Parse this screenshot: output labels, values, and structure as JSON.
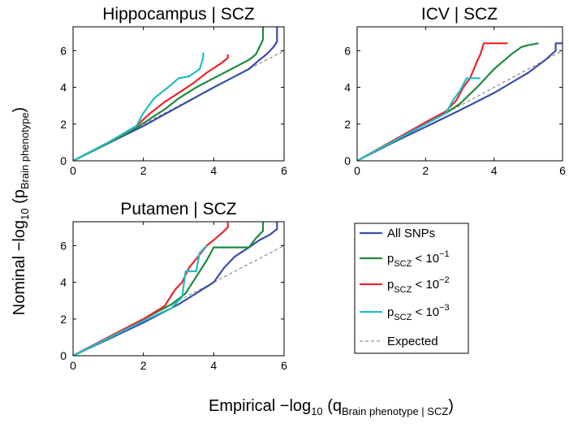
{
  "figure": {
    "ylabel_main": "Nominal −log",
    "ylabel_sub": "10",
    "ylabel_paren": " (p",
    "ylabel_subscript": "Brain phenotype",
    "ylabel_close": ")",
    "xlabel_main": "Empirical −log",
    "xlabel_sub": "10",
    "xlabel_paren": " (q",
    "xlabel_subscript": "Brain phenotype | SCZ",
    "xlabel_close": ")"
  },
  "legend": {
    "entries": [
      {
        "label": "All SNPs",
        "prefix": "",
        "sub": "",
        "exp": "",
        "color": "#3a4da8",
        "style": "solid"
      },
      {
        "label": "",
        "prefix": "p",
        "sub": "SCZ",
        "mid": " < 10",
        "exp": "−1",
        "color": "#1f8a3a",
        "style": "solid"
      },
      {
        "label": "",
        "prefix": "p",
        "sub": "SCZ",
        "mid": " < 10",
        "exp": "−2",
        "color": "#e8262b",
        "style": "solid"
      },
      {
        "label": "",
        "prefix": "p",
        "sub": "SCZ",
        "mid": " < 10",
        "exp": "−3",
        "color": "#23bcc4",
        "style": "solid"
      },
      {
        "label": "Expected",
        "prefix": "",
        "sub": "",
        "exp": "",
        "color": "#777777",
        "style": "dashed"
      }
    ]
  },
  "chart_data": [
    {
      "type": "line",
      "title": "Hippocampus | SCZ",
      "xlim": [
        0,
        6
      ],
      "ylim": [
        0,
        7.3
      ],
      "xticks": [
        0,
        2,
        4,
        6
      ],
      "yticks": [
        0,
        2,
        4,
        6
      ],
      "series": [
        {
          "name": "All SNPs",
          "x": [
            0,
            1,
            2,
            3,
            4,
            4.5,
            5,
            5.3,
            5.5,
            5.6,
            5.7,
            5.8,
            5.8
          ],
          "y": [
            0,
            0.95,
            1.9,
            2.95,
            4.0,
            4.5,
            5.0,
            5.5,
            5.8,
            6.0,
            6.2,
            6.5,
            7.3
          ]
        },
        {
          "name": "p_SCZ < 10^-1",
          "x": [
            0,
            1,
            1.8,
            2.2,
            2.6,
            3.0,
            3.5,
            4.0,
            4.5,
            5.0,
            5.2,
            5.3,
            5.4,
            5.4
          ],
          "y": [
            0,
            0.95,
            1.8,
            2.3,
            2.8,
            3.4,
            4.0,
            4.5,
            5.0,
            5.5,
            5.8,
            6.2,
            6.6,
            7.3
          ]
        },
        {
          "name": "p_SCZ < 10^-2",
          "x": [
            0,
            1,
            1.8,
            2.2,
            2.6,
            3.0,
            3.4,
            3.8,
            4.2,
            4.4,
            4.4
          ],
          "y": [
            0,
            1.0,
            1.9,
            2.6,
            3.2,
            3.7,
            4.2,
            4.8,
            5.3,
            5.6,
            5.8
          ]
        },
        {
          "name": "p_SCZ < 10^-3",
          "x": [
            0,
            1,
            1.8,
            2.0,
            2.3,
            2.7,
            3.0,
            3.3,
            3.6,
            3.7,
            3.7
          ],
          "y": [
            0,
            1.0,
            1.9,
            2.6,
            3.4,
            4.0,
            4.5,
            4.6,
            5.0,
            5.6,
            5.9
          ]
        },
        {
          "name": "Expected",
          "x": [
            0,
            6
          ],
          "y": [
            0,
            6
          ]
        }
      ]
    },
    {
      "type": "line",
      "title": "ICV | SCZ",
      "xlim": [
        0,
        6
      ],
      "ylim": [
        0,
        7.3
      ],
      "xticks": [
        0,
        2,
        4,
        6
      ],
      "yticks": [
        0,
        2,
        4,
        6
      ],
      "series": [
        {
          "name": "All SNPs",
          "x": [
            0,
            1,
            2,
            3,
            4,
            5,
            5.5,
            5.8,
            5.8,
            6.0
          ],
          "y": [
            0,
            0.95,
            1.85,
            2.75,
            3.7,
            4.8,
            5.5,
            6.0,
            6.4,
            6.4
          ]
        },
        {
          "name": "p_SCZ < 10^-1",
          "x": [
            0,
            1,
            2,
            2.6,
            3.0,
            3.5,
            4.0,
            4.5,
            4.8,
            5.0,
            5.3
          ],
          "y": [
            0,
            1.0,
            2.0,
            2.6,
            3.1,
            4.0,
            5.0,
            5.8,
            6.2,
            6.3,
            6.4
          ]
        },
        {
          "name": "p_SCZ < 10^-2",
          "x": [
            0,
            1,
            2,
            2.6,
            2.9,
            3.1,
            3.3,
            3.5,
            3.6,
            3.7,
            4.4
          ],
          "y": [
            0,
            1.05,
            2.1,
            2.7,
            3.3,
            4.0,
            4.5,
            5.4,
            5.8,
            6.4,
            6.4
          ]
        },
        {
          "name": "p_SCZ < 10^-3",
          "x": [
            0,
            1,
            2,
            2.6,
            2.8,
            3.0,
            3.2,
            3.6
          ],
          "y": [
            0,
            1.0,
            2.0,
            2.6,
            3.3,
            3.8,
            4.5,
            4.5
          ]
        },
        {
          "name": "Expected",
          "x": [
            0,
            6
          ],
          "y": [
            0,
            6
          ]
        }
      ]
    },
    {
      "type": "line",
      "title": "Putamen | SCZ",
      "xlim": [
        0,
        6
      ],
      "ylim": [
        0,
        7.3
      ],
      "xticks": [
        0,
        2,
        4,
        6
      ],
      "yticks": [
        0,
        2,
        4,
        6
      ],
      "series": [
        {
          "name": "All SNPs",
          "x": [
            0,
            1,
            2,
            3,
            3.5,
            4.0,
            4.3,
            4.6,
            5.0,
            5.3,
            5.6,
            5.8,
            5.8
          ],
          "y": [
            0,
            0.9,
            1.8,
            2.8,
            3.4,
            4.0,
            4.8,
            5.4,
            5.9,
            6.3,
            6.6,
            6.9,
            7.3
          ]
        },
        {
          "name": "p_SCZ < 10^-1",
          "x": [
            0,
            1,
            2,
            2.8,
            3.2,
            3.5,
            3.8,
            4.0,
            5.0,
            5.2,
            5.4,
            5.4
          ],
          "y": [
            0,
            1.0,
            2.0,
            2.8,
            3.4,
            4.3,
            5.2,
            5.9,
            5.9,
            6.4,
            6.8,
            7.3
          ]
        },
        {
          "name": "p_SCZ < 10^-2",
          "x": [
            0,
            1,
            2,
            2.6,
            2.9,
            3.1,
            3.3,
            3.6,
            3.8,
            4.0,
            4.3,
            4.4,
            4.4
          ],
          "y": [
            0,
            1.0,
            2.0,
            2.7,
            3.6,
            4.0,
            4.8,
            5.5,
            6.0,
            6.3,
            6.8,
            7.0,
            7.3
          ]
        },
        {
          "name": "p_SCZ < 10^-3",
          "x": [
            0,
            1,
            2,
            2.8,
            3.1,
            3.2,
            3.5,
            3.6,
            3.8
          ],
          "y": [
            0,
            0.95,
            1.9,
            2.6,
            3.2,
            4.6,
            4.6,
            5.6,
            6.0
          ]
        },
        {
          "name": "Expected",
          "x": [
            0,
            6
          ],
          "y": [
            0,
            6
          ]
        }
      ]
    }
  ]
}
